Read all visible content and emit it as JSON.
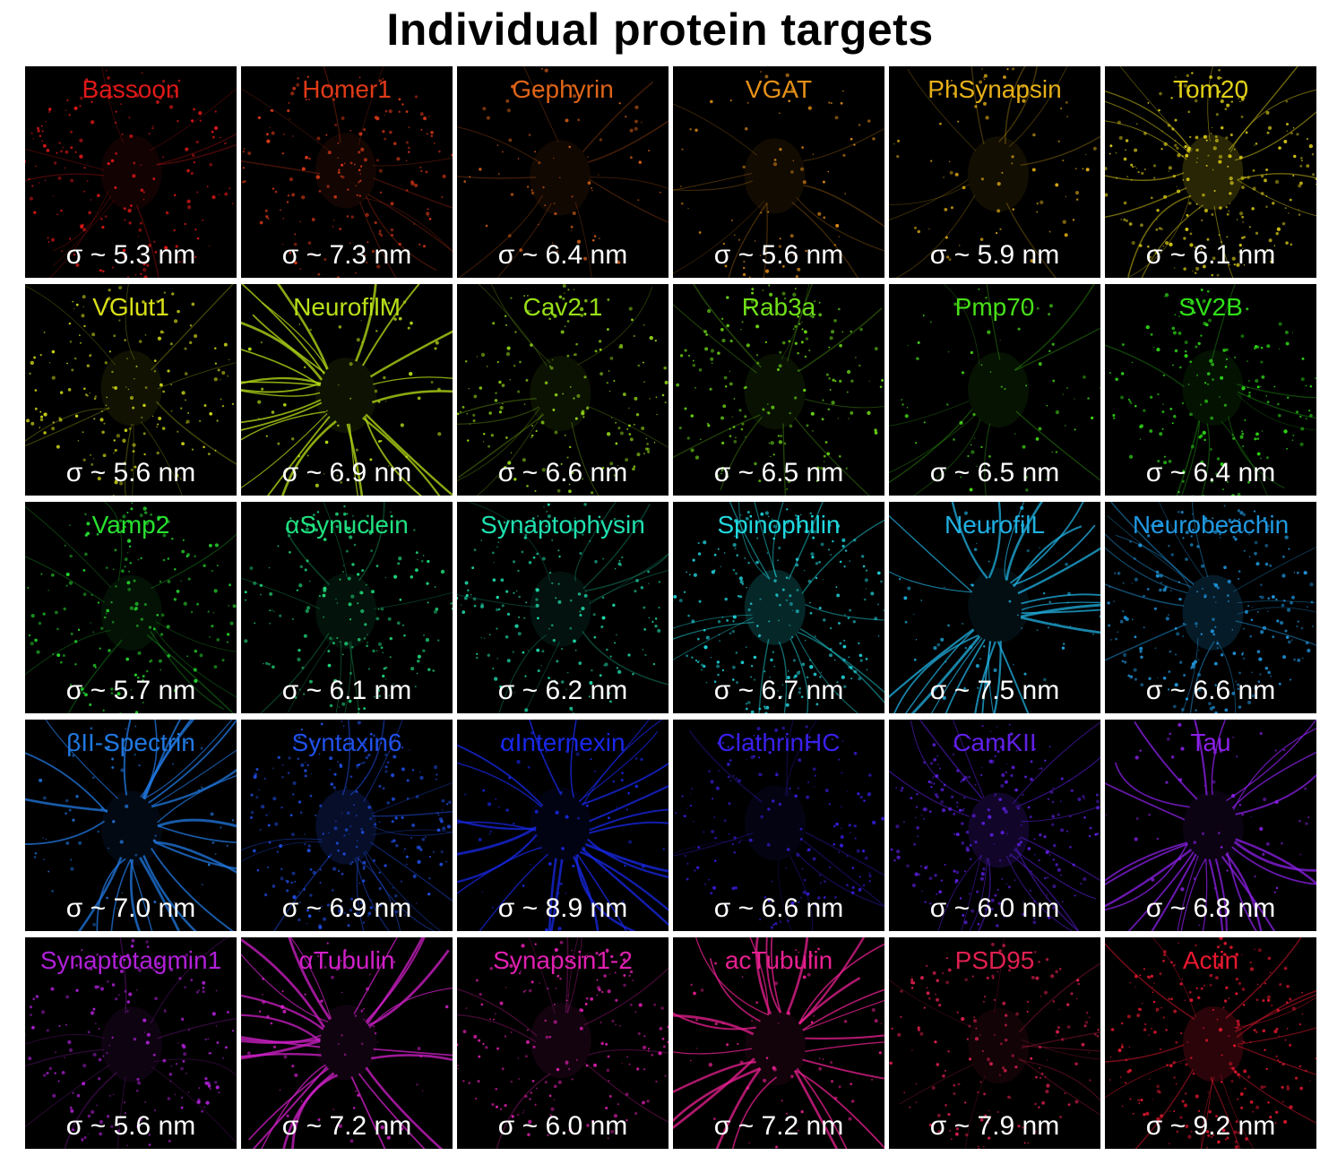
{
  "title": "Individual protein targets",
  "panels": [
    {
      "label": "Bassoon",
      "sigma": "σ ~ 5.3 nm",
      "color": "#e01818",
      "style": "puncta"
    },
    {
      "label": "Homer1",
      "sigma": "σ ~ 7.3 nm",
      "color": "#e03a18",
      "style": "puncta"
    },
    {
      "label": "Gephyrin",
      "sigma": "σ ~ 6.4 nm",
      "color": "#e06418",
      "style": "sparse"
    },
    {
      "label": "VGAT",
      "sigma": "σ ~ 5.6 nm",
      "color": "#e69018",
      "style": "sparse"
    },
    {
      "label": "PhSynapsin",
      "sigma": "σ ~ 5.9 nm",
      "color": "#e6b018",
      "style": "sparse"
    },
    {
      "label": "Tom20",
      "sigma": "σ ~ 6.1 nm",
      "color": "#e0d018",
      "style": "dense"
    },
    {
      "label": "VGlut1",
      "sigma": "σ ~ 5.6 nm",
      "color": "#d8e018",
      "style": "puncta"
    },
    {
      "label": "NeurofilM",
      "sigma": "σ ~ 6.9 nm",
      "color": "#b8e018",
      "style": "fibers"
    },
    {
      "label": "Cav2.1",
      "sigma": "σ ~ 6.6 nm",
      "color": "#98e018",
      "style": "puncta"
    },
    {
      "label": "Rab3a",
      "sigma": "σ ~ 6.5 nm",
      "color": "#70e018",
      "style": "puncta"
    },
    {
      "label": "Pmp70",
      "sigma": "σ ~ 6.5 nm",
      "color": "#48e018",
      "style": "sparse"
    },
    {
      "label": "SV2B",
      "sigma": "σ ~ 6.4 nm",
      "color": "#30e018",
      "style": "puncta"
    },
    {
      "label": "Vamp2",
      "sigma": "σ ~ 5.7 nm",
      "color": "#28e030",
      "style": "puncta"
    },
    {
      "label": "αSynuclein",
      "sigma": "σ ~ 6.1 nm",
      "color": "#20e080",
      "style": "puncta"
    },
    {
      "label": "Synaptophysin",
      "sigma": "σ ~ 6.2 nm",
      "color": "#20e0b0",
      "style": "puncta"
    },
    {
      "label": "Spinophilin",
      "sigma": "σ ~ 6.7 nm",
      "color": "#20d8e0",
      "style": "dense"
    },
    {
      "label": "NeurofilL",
      "sigma": "σ ~ 7.5 nm",
      "color": "#20b0e0",
      "style": "fibers"
    },
    {
      "label": "Neurobeachin",
      "sigma": "σ ~ 6.6 nm",
      "color": "#2098e0",
      "style": "dense"
    },
    {
      "label": "βII-Spectrin",
      "sigma": "σ ~ 7.0 nm",
      "color": "#2078e0",
      "style": "fibers"
    },
    {
      "label": "Syntaxin6",
      "sigma": "σ ~ 6.9 nm",
      "color": "#2050e8",
      "style": "dense"
    },
    {
      "label": "αInternexin",
      "sigma": "σ ~ 8.9 nm",
      "color": "#1828e8",
      "style": "fibers"
    },
    {
      "label": "ClathrinHC",
      "sigma": "σ ~ 6.6 nm",
      "color": "#3820e8",
      "style": "puncta"
    },
    {
      "label": "CamKII",
      "sigma": "σ ~ 6.0 nm",
      "color": "#6020e8",
      "style": "dense"
    },
    {
      "label": "Tau",
      "sigma": "σ ~ 6.8 nm",
      "color": "#8c20e8",
      "style": "fibers"
    },
    {
      "label": "Synaptotagmin1",
      "sigma": "σ ~ 5.6 nm",
      "color": "#b020d8",
      "style": "puncta"
    },
    {
      "label": "αTubulin",
      "sigma": "σ ~ 7.2 nm",
      "color": "#d020c8",
      "style": "fibers"
    },
    {
      "label": "Synapsin1-2",
      "sigma": "σ ~ 6.0 nm",
      "color": "#e020b0",
      "style": "puncta"
    },
    {
      "label": "acTubulin",
      "sigma": "σ ~ 7.2 nm",
      "color": "#e82090",
      "style": "fibers"
    },
    {
      "label": "PSD95",
      "sigma": "σ ~ 7.9 nm",
      "color": "#e02050",
      "style": "puncta"
    },
    {
      "label": "Actin",
      "sigma": "σ ~ 9.2 nm",
      "color": "#e81830",
      "style": "dense"
    }
  ]
}
